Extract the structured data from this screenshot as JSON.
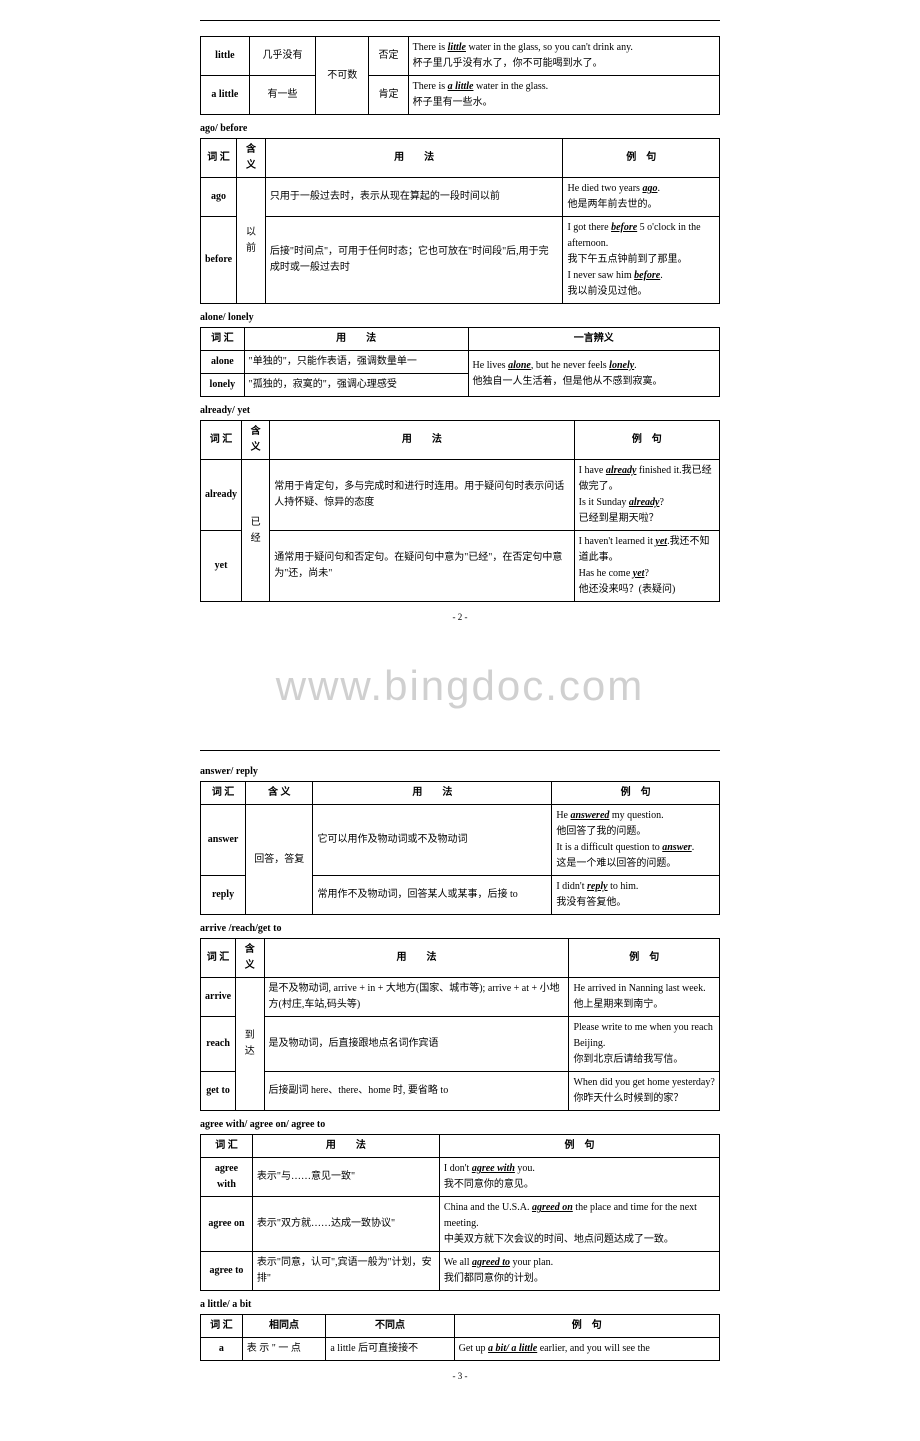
{
  "watermark": "www.bingdoc.com",
  "page2_num": "- 2 -",
  "page3_num": "- 3 -",
  "t1": {
    "r1c1": "little",
    "r1c2": "几乎没有",
    "r1c3": "不可数",
    "r1c4": "否定",
    "r1c5a": "There is ",
    "r1c5b": "little",
    "r1c5c": " water in the glass, so you can't drink any.",
    "r1c5d": "杯子里几乎没有水了，你不可能喝到水了。",
    "r2c1": "a little",
    "r2c2": "有一些",
    "r2c4": "肯定",
    "r2c5a": "There is ",
    "r2c5b": "a little",
    "r2c5c": " water in the glass.",
    "r2c5d": "杯子里有一些水。"
  },
  "s2": "ago/ before",
  "t2": {
    "h1": "词 汇",
    "h2": "含 义",
    "h3": "用　　法",
    "h4": "例　句",
    "r1c1": "ago",
    "r1c3": "只用于一般过去时，表示从现在算起的一段时间以前",
    "r1c4a": "He died two years ",
    "r1c4b": "ago",
    "r1c4c": ".",
    "r1c4d": "他是两年前去世的。",
    "r2c1": "before",
    "r2c2": "以前",
    "r2c3": "后接\"时间点\"，可用于任何时态；它也可放在\"时间段\"后,用于完成时或一般过去时",
    "r2c4a": "I got there ",
    "r2c4b": "before",
    "r2c4c": " 5 o'clock in the afternoon.",
    "r2c4d": "我下午五点钟前到了那里。",
    "r2c4e": "I never saw him ",
    "r2c4f": "before",
    "r2c4g": ".",
    "r2c4h": "我以前没见过他。"
  },
  "s3": "alone/ lonely",
  "t3": {
    "h1": "词 汇",
    "h2": "用　　法",
    "h3": "一言辨义",
    "r1c1": "alone",
    "r1c2": "\"单独的\"，只能作表语，强调数量单一",
    "r2c1": "lonely",
    "r2c2": "\"孤独的，寂寞的\"，强调心理感受",
    "ex1a": "He lives ",
    "ex1b": "alone",
    "ex1c": ", but he never feels ",
    "ex1d": "lonely",
    "ex1e": ".",
    "ex2": "他独自一人生活着，但是他从不感到寂寞。"
  },
  "s4": "already/ yet",
  "t4": {
    "h1": "词 汇",
    "h2": "含 义",
    "h3": "用　　法",
    "h4": "例　句",
    "r1c1": "already",
    "r1c2": "已经",
    "r1c3": "常用于肯定句，多与完成时和进行时连用。用于疑问句时表示问话人持怀疑、惊异的态度",
    "r1c4a": "I have ",
    "r1c4b": "already",
    "r1c4c": " finished it.我已经做完了。",
    "r1c4d": "Is it Sunday ",
    "r1c4e": "already",
    "r1c4f": "?",
    "r1c4g": "已经到星期天啦？",
    "r2c1": "yet",
    "r2c3": "通常用于疑问句和否定句。在疑问句中意为\"已经\"，在否定句中意为\"还，尚未\"",
    "r2c4a": "I haven't learned it ",
    "r2c4b": "yet",
    "r2c4c": ".我还不知道此事。",
    "r2c4d": "Has he come ",
    "r2c4e": "yet",
    "r2c4f": "?",
    "r2c4g": "他还没来吗？(表疑问)"
  },
  "s5": "answer/ reply",
  "t5": {
    "h1": "词 汇",
    "h2": "含 义",
    "h3": "用　　法",
    "h4": "例　句",
    "r1c1": "answer",
    "r1c2": "回答，答复",
    "r1c3": "它可以用作及物动词或不及物动词",
    "r1c4a": "He ",
    "r1c4b": "answered",
    "r1c4c": " my question.",
    "r1c4d": "他回答了我的问题。",
    "r1c4e": "It is a difficult question to ",
    "r1c4f": "answer",
    "r1c4g": ".",
    "r1c4h": "这是一个难以回答的问题。",
    "r2c1": "reply",
    "r2c3": "常用作不及物动词，回答某人或某事，后接 to",
    "r2c4a": "I didn't ",
    "r2c4b": "reply",
    "r2c4c": " to him.",
    "r2c4d": "我没有答复他。"
  },
  "s6": "arrive /reach/get to",
  "t6": {
    "h1": "词 汇",
    "h2": "含 义",
    "h3": "用　　法",
    "h4": "例　句",
    "r1c1": "arrive",
    "r1c2": "到达",
    "r1c3": "是不及物动词, arrive + in + 大地方(国家、城市等); arrive + at + 小地方(村庄,车站,码头等)",
    "r1c4": "He arrived in Nanning last week.",
    "r1c4b": "他上星期来到南宁。",
    "r2c1": "reach",
    "r2c3": "是及物动词，后直接跟地点名词作宾语",
    "r2c4": "Please write to me when you reach Beijing.",
    "r2c4b": "你到北京后请给我写信。",
    "r3c1": "get to",
    "r3c3": "后接副词 here、there、home 时, 要省略 to",
    "r3c4": "When did you get home yesterday?",
    "r3c4b": "你昨天什么时候到的家？"
  },
  "s7": "agree with/ agree on/ agree to",
  "t7": {
    "h1": "词 汇",
    "h2": "用　　法",
    "h3": "例　句",
    "r1c1": "agree with",
    "r1c2": "表示\"与……意见一致\"",
    "r1c3a": "I don't ",
    "r1c3b": "agree with",
    "r1c3c": " you.",
    "r1c3d": "我不同意你的意见。",
    "r2c1": "agree on",
    "r2c2": "表示\"双方就……达成一致协议\"",
    "r2c3a": "China and the U.S.A. ",
    "r2c3b": "agreed on",
    "r2c3c": " the place and time for the next meeting.",
    "r2c3d": "中美双方就下次会议的时间、地点问题达成了一致。",
    "r3c1": "agree to",
    "r3c2": "表示\"同意，认可\",宾语一般为\"计划，安排\"",
    "r3c3a": "We all ",
    "r3c3b": "agreed to",
    "r3c3c": " your plan.",
    "r3c3d": "我们都同意你的计划。"
  },
  "s8": "a little/ a bit",
  "t8": {
    "h1": "词 汇",
    "h2": "相同点",
    "h3": "不同点",
    "h4": "例　句",
    "r1c1": "a",
    "r1c2": "表 示 \" 一 点",
    "r1c3": "a little 后可直接接不",
    "r1c4a": "Get up ",
    "r1c4b": "a bit/ a little",
    "r1c4c": " earlier, and you will see the"
  }
}
